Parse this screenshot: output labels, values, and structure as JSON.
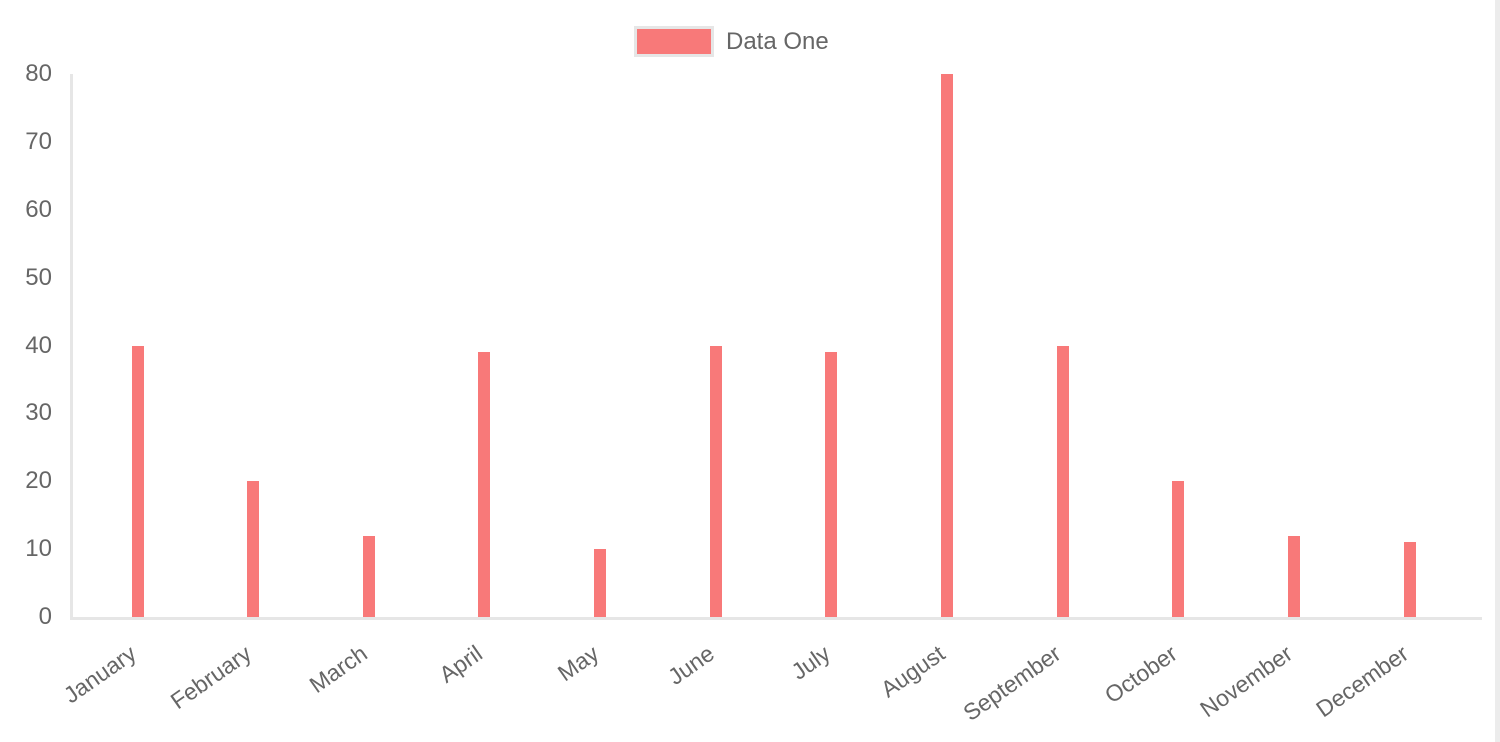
{
  "chart_data": {
    "type": "bar",
    "title": "",
    "xlabel": "",
    "ylabel": "",
    "categories": [
      "January",
      "February",
      "March",
      "April",
      "May",
      "June",
      "July",
      "August",
      "September",
      "October",
      "November",
      "December"
    ],
    "series": [
      {
        "name": "Data One",
        "color": "#f87979",
        "values": [
          40,
          20,
          12,
          39,
          10,
          40,
          39,
          80,
          40,
          20,
          12,
          11
        ]
      }
    ],
    "ylim": [
      0,
      80
    ],
    "yticks": [
      0,
      10,
      20,
      30,
      40,
      50,
      60,
      70,
      80
    ],
    "grid": false,
    "legend_position": "top-center",
    "x_label_rotation_deg": -35
  },
  "colors": {
    "background": "#ffffff",
    "bar": "#f87979",
    "axis_line": "#e6e6e6",
    "tick_label": "#666666",
    "legend_text": "#666666",
    "legend_swatch_border": "#e6e6e6",
    "scrollbar": "#ececec"
  }
}
